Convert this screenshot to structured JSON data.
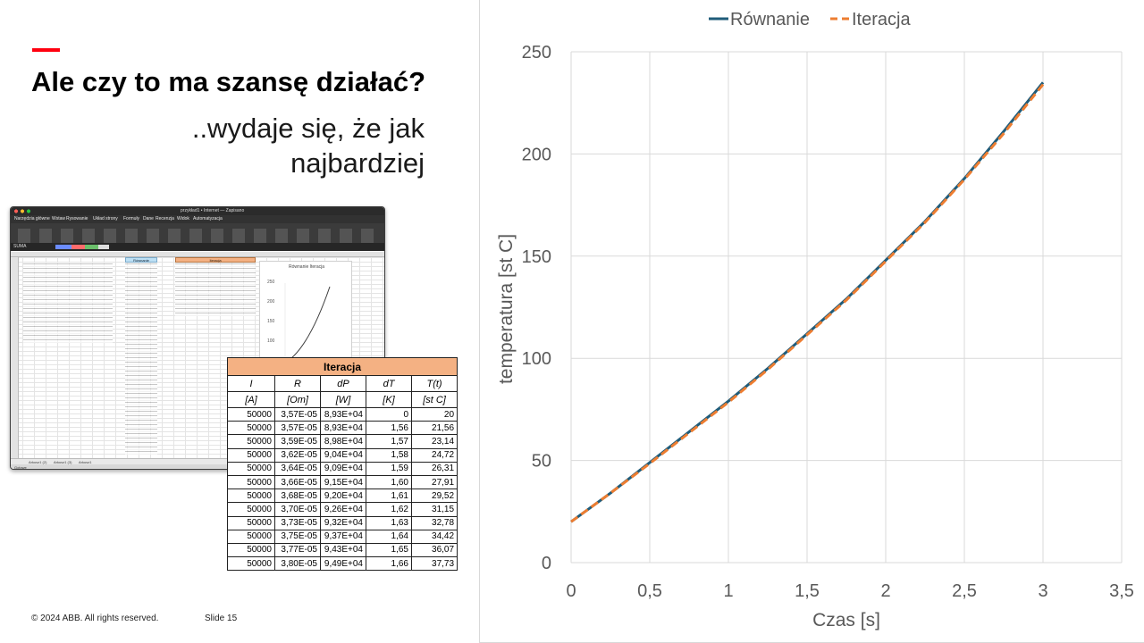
{
  "slide": {
    "title": "Ale czy to ma szansę działać?",
    "subtitle_line1": "..wydaje się, że jak",
    "subtitle_line2": "najbardziej",
    "footer_copyright": "© 2024 ABB. All rights reserved.",
    "footer_slide": "Slide 15",
    "accent_color": "#ff000f"
  },
  "excel_screenshot": {
    "window_title": "przykład1 • Internet — Zapisano",
    "cell_ref": "SUMA",
    "menu": [
      "Narzędzia główne",
      "Wstaw",
      "Rysowanie",
      "Układ strony",
      "Formuły",
      "Dane",
      "Recenzja",
      "Widok",
      "Automatyzacja"
    ],
    "header_blue": "Równanie",
    "header_orange": "Iteracja",
    "mini_chart_legend": "Równanie  Iteracja",
    "mini_chart_yticks": [
      "250",
      "200",
      "150",
      "100"
    ],
    "sheet_tabs": [
      "Arkusz1 (2)",
      "Arkusz1 (3)",
      "Arkusz1"
    ],
    "status": "Gotowe"
  },
  "iteration_table": {
    "title": "Iteracja",
    "columns": [
      "I",
      "R",
      "dP",
      "dT",
      "T(t)"
    ],
    "units": [
      "[A]",
      "[Om]",
      "[W]",
      "[K]",
      "[st C]"
    ],
    "rows": [
      [
        "50000",
        "3,57E-05",
        "8,93E+04",
        "0",
        "20"
      ],
      [
        "50000",
        "3,57E-05",
        "8,93E+04",
        "1,56",
        "21,56"
      ],
      [
        "50000",
        "3,59E-05",
        "8,98E+04",
        "1,57",
        "23,14"
      ],
      [
        "50000",
        "3,62E-05",
        "9,04E+04",
        "1,58",
        "24,72"
      ],
      [
        "50000",
        "3,64E-05",
        "9,09E+04",
        "1,59",
        "26,31"
      ],
      [
        "50000",
        "3,66E-05",
        "9,15E+04",
        "1,60",
        "27,91"
      ],
      [
        "50000",
        "3,68E-05",
        "9,20E+04",
        "1,61",
        "29,52"
      ],
      [
        "50000",
        "3,70E-05",
        "9,26E+04",
        "1,62",
        "31,15"
      ],
      [
        "50000",
        "3,73E-05",
        "9,32E+04",
        "1,63",
        "32,78"
      ],
      [
        "50000",
        "3,75E-05",
        "9,37E+04",
        "1,64",
        "34,42"
      ],
      [
        "50000",
        "3,77E-05",
        "9,43E+04",
        "1,65",
        "36,07"
      ],
      [
        "50000",
        "3,80E-05",
        "9,49E+04",
        "1,66",
        "37,73"
      ]
    ]
  },
  "chart_data": {
    "type": "line",
    "title": "",
    "xlabel": "Czas [s]",
    "ylabel": "temperatura [st C]",
    "xlim": [
      0,
      3.5
    ],
    "ylim": [
      0,
      250
    ],
    "xticks": [
      "0",
      "0,5",
      "1",
      "1,5",
      "2",
      "2,5",
      "3",
      "3,5"
    ],
    "yticks": [
      "0",
      "50",
      "100",
      "150",
      "200",
      "250"
    ],
    "grid": true,
    "legend_position": "top",
    "series": [
      {
        "name": "Równanie",
        "color": "#1f5c7a",
        "style": "solid",
        "x": [
          0,
          0.25,
          0.5,
          0.75,
          1.0,
          1.25,
          1.5,
          1.75,
          2.0,
          2.25,
          2.5,
          2.75,
          3.0
        ],
        "y": [
          20,
          34,
          49,
          64,
          79,
          95,
          112,
          129,
          148,
          167,
          188,
          211,
          235
        ]
      },
      {
        "name": "Iteracja",
        "color": "#ed7d31",
        "style": "dashed",
        "x": [
          0,
          0.25,
          0.5,
          0.75,
          1.0,
          1.25,
          1.5,
          1.75,
          2.0,
          2.25,
          2.5,
          2.75,
          3.0
        ],
        "y": [
          20,
          34,
          48.5,
          63.5,
          78.5,
          94.5,
          111.5,
          128.5,
          147.5,
          166.5,
          187.5,
          210,
          234
        ]
      }
    ]
  }
}
